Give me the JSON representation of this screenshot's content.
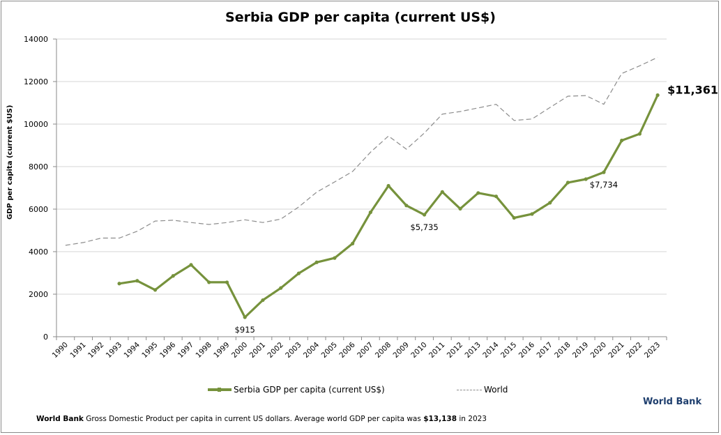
{
  "chart_data": {
    "type": "line",
    "title": "Serbia GDP per capita (current US$)",
    "xlabel": "",
    "ylabel": "GDP per capita (current $US)",
    "ylim": [
      0,
      14000
    ],
    "yticks": [
      "0",
      "2000",
      "4000",
      "6000",
      "8000",
      "10000",
      "12000",
      "14000"
    ],
    "ytick_values": [
      0,
      2000,
      4000,
      6000,
      8000,
      10000,
      12000,
      14000
    ],
    "grid": true,
    "legend_position": "bottom",
    "x": [
      1990,
      1991,
      1992,
      1993,
      1994,
      1995,
      1996,
      1997,
      1998,
      1999,
      2000,
      2001,
      2002,
      2003,
      2004,
      2005,
      2006,
      2007,
      2008,
      2009,
      2010,
      2011,
      2012,
      2013,
      2014,
      2015,
      2016,
      2017,
      2018,
      2019,
      2020,
      2021,
      2022,
      2023
    ],
    "xtick_labels": [
      "1990",
      "1991",
      "1992",
      "1993",
      "1994",
      "1995",
      "1996",
      "1997",
      "1998",
      "1999",
      "2000",
      "2001",
      "2002",
      "2003",
      "2004",
      "2005",
      "2006",
      "2007",
      "2008",
      "2009",
      "2010",
      "2011",
      "2012",
      "2013",
      "2014",
      "2015",
      "2016",
      "2017",
      "2018",
      "2019",
      "2020",
      "2021",
      "2022",
      "2023"
    ],
    "series": [
      {
        "name": "Serbia GDP per capita (current US$)",
        "color": "#76923c",
        "style": "solid",
        "values": [
          null,
          null,
          null,
          2500,
          2630,
          2200,
          2860,
          3380,
          2560,
          2560,
          915,
          1720,
          2290,
          2980,
          3500,
          3700,
          4380,
          5850,
          7100,
          6170,
          5735,
          6810,
          6020,
          6760,
          6600,
          5590,
          5770,
          6300,
          7250,
          7410,
          7734,
          9230,
          9540,
          11361
        ]
      },
      {
        "name": "World",
        "color": "#8c8c8c",
        "style": "dashed",
        "values": [
          4300,
          4430,
          4640,
          4640,
          4960,
          5440,
          5480,
          5370,
          5280,
          5370,
          5500,
          5370,
          5530,
          6100,
          6800,
          7280,
          7770,
          8680,
          9440,
          8820,
          9580,
          10470,
          10590,
          10760,
          10930,
          10170,
          10240,
          10780,
          11310,
          11340,
          10930,
          12380,
          12740,
          13138
        ]
      }
    ],
    "annotations": [
      {
        "text": "$915",
        "year": 2000,
        "value": 915
      },
      {
        "text": "$5,735",
        "year": 2010,
        "value": 5735
      },
      {
        "text": "$7,734",
        "year": 2020,
        "value": 7734
      },
      {
        "text": "$11,361",
        "year": 2023,
        "value": 11361
      }
    ]
  },
  "footer": {
    "brand": "World Bank",
    "source_bold": "World Bank",
    "source_text": " Gross Domestic Product per capita in current US dollars.  Average world GDP per capita was ",
    "source_value": "$13,138",
    "source_tail": " in 2023"
  }
}
